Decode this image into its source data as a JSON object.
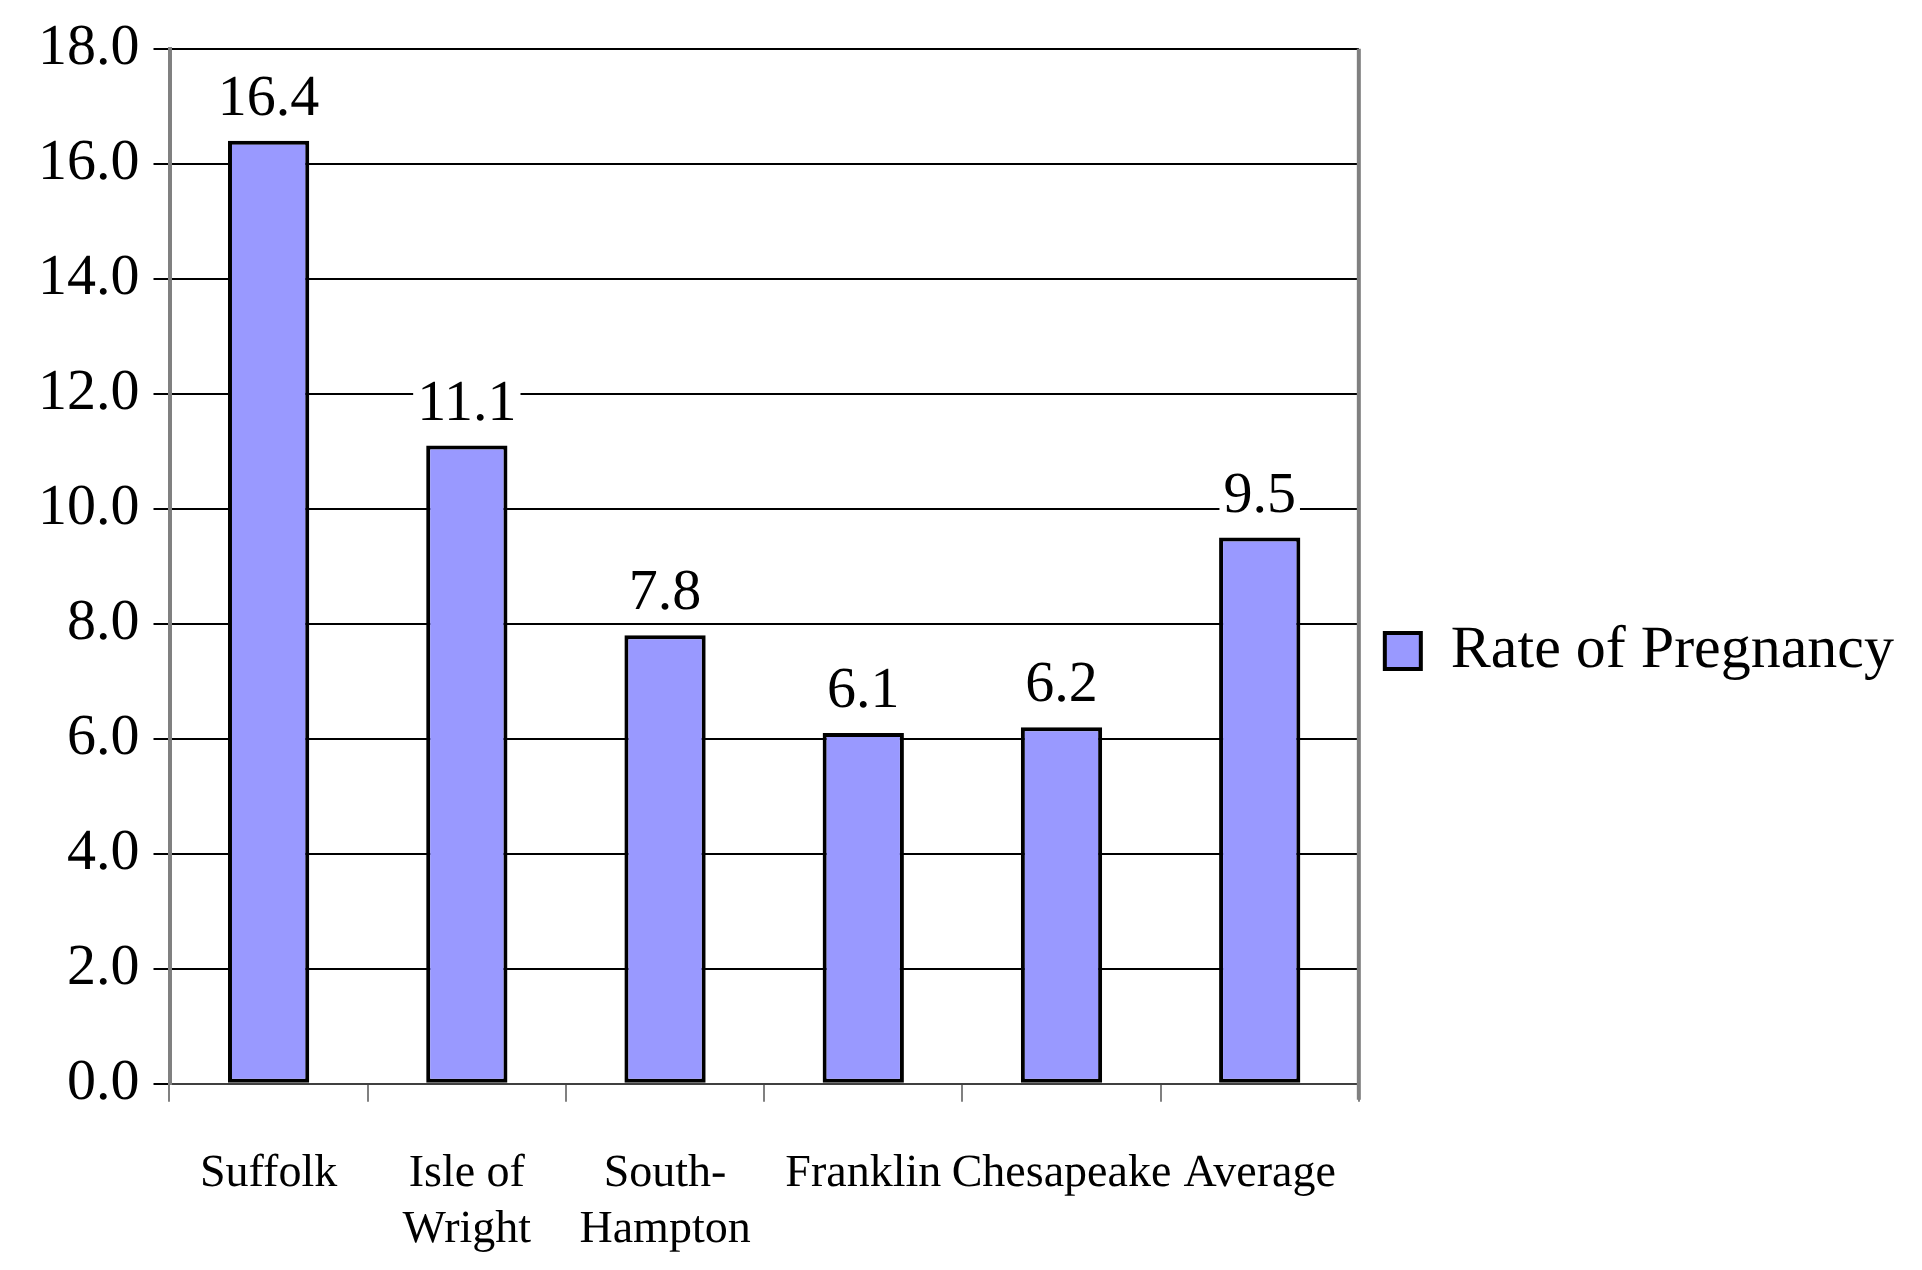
{
  "chart_data": {
    "type": "bar",
    "categories": [
      "Suffolk",
      "Isle of Wright",
      "South-Hampton",
      "Franklin",
      "Chesapeake",
      "Average"
    ],
    "series": [
      {
        "name": "Rate of Pregnancy",
        "color": "#9999ff",
        "values": [
          16.4,
          11.1,
          7.8,
          6.1,
          6.2,
          9.5
        ]
      }
    ],
    "ylim": [
      0,
      18
    ],
    "yticks": [
      {
        "value": 0,
        "label": "0.0"
      },
      {
        "value": 2,
        "label": "2.0"
      },
      {
        "value": 4,
        "label": "4.0"
      },
      {
        "value": 6,
        "label": "6.0"
      },
      {
        "value": 8,
        "label": "8.0"
      },
      {
        "value": 10,
        "label": "10.0"
      },
      {
        "value": 12,
        "label": "12.0"
      },
      {
        "value": 14,
        "label": "14.0"
      },
      {
        "value": 16,
        "label": "16.0"
      },
      {
        "value": 18,
        "label": "18.0"
      }
    ],
    "grid": "y",
    "legend": "right",
    "data_labels": true
  }
}
